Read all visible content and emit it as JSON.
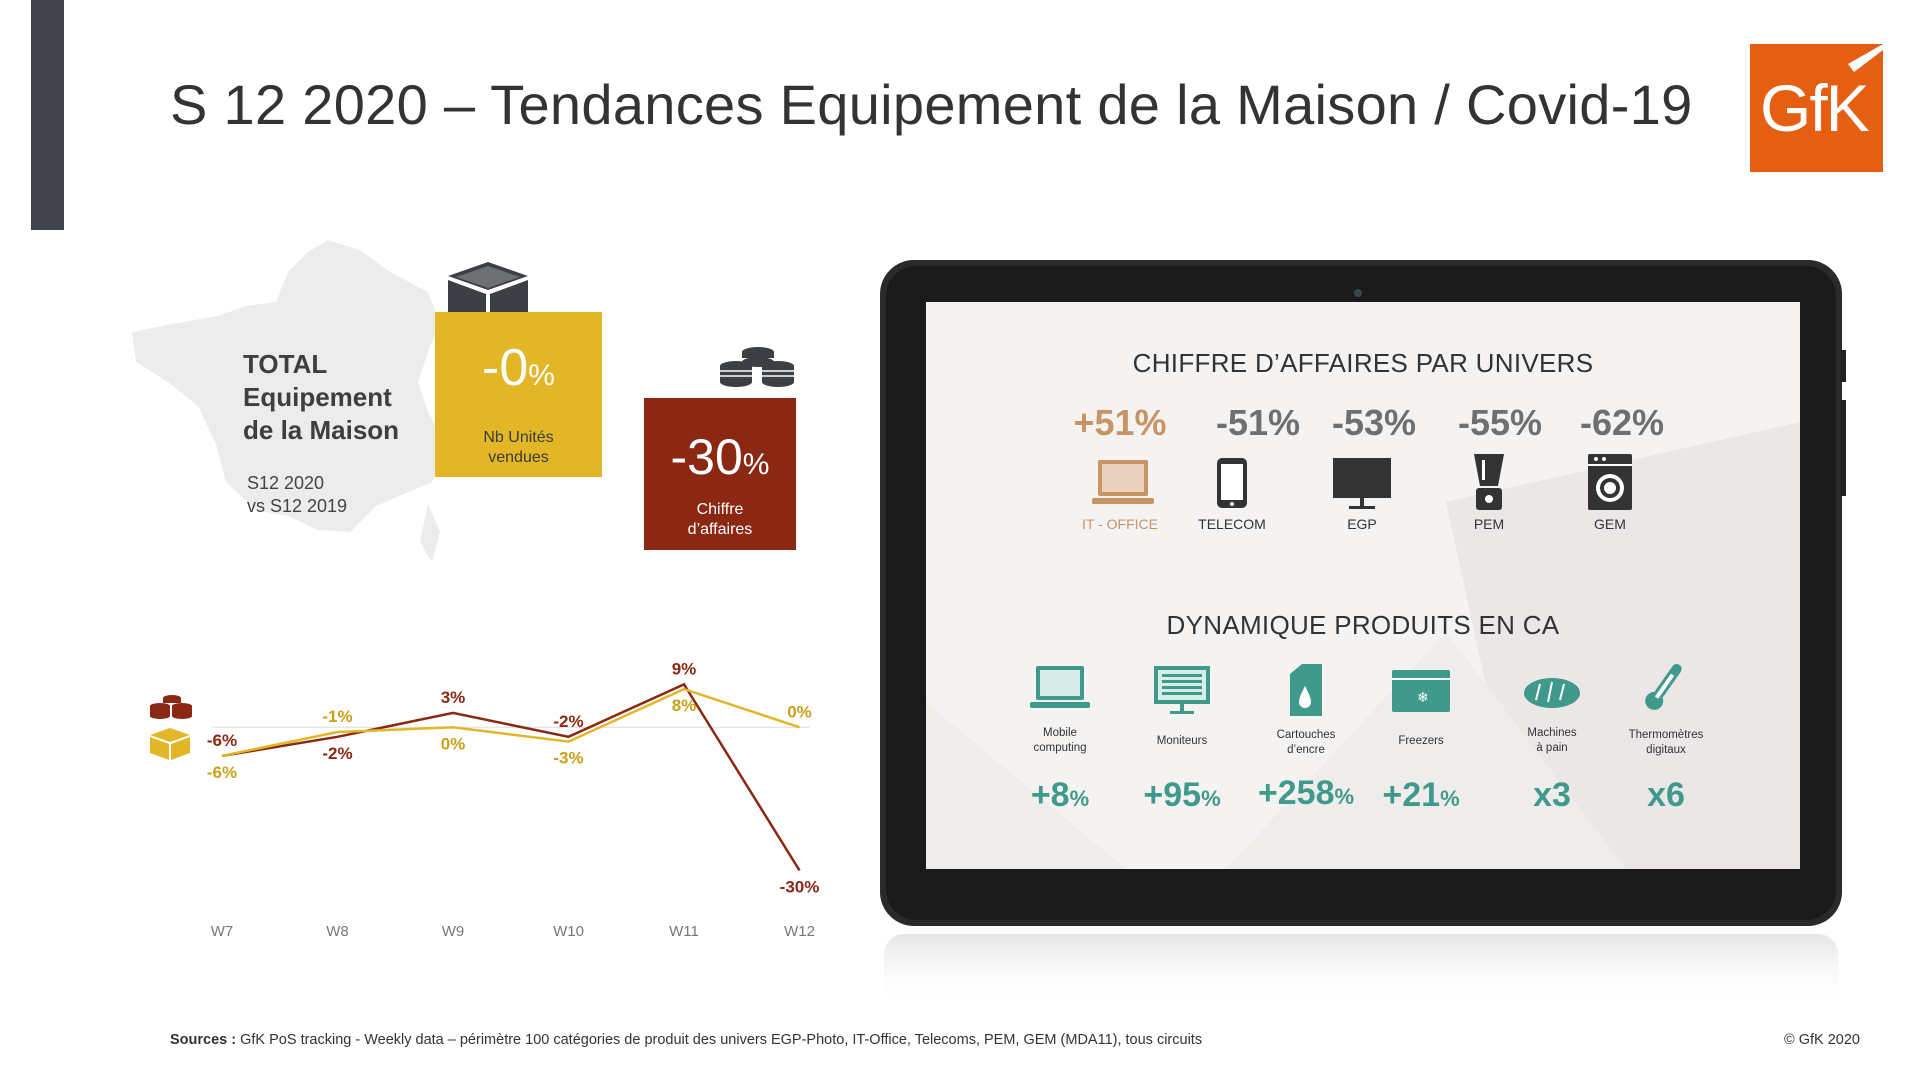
{
  "title": "S 12 2020 – Tendances Equipement de la Maison / Covid-19",
  "logo_text": "GfK",
  "total": {
    "line1": "TOTAL",
    "line2": "Equipement",
    "line3": "de la Maison",
    "period_line1": "S12 2020",
    "period_line2": "vs S12 2019"
  },
  "units_box": {
    "value": "-0",
    "pct": "%",
    "label_line1": "Nb Unités",
    "label_line2": "vendues",
    "color": "#e2b627"
  },
  "ca_box": {
    "value": "-30",
    "pct": "%",
    "label_line1": "Chiffre",
    "label_line2": "d’affaires",
    "color": "#8b2813"
  },
  "tablet": {
    "heading1": "CHIFFRE D’AFFAIRES PAR UNIVERS",
    "universes": [
      {
        "value": "+51%",
        "label": "IT - OFFICE",
        "icon": "laptop-icon"
      },
      {
        "value": "-51%",
        "label": "TELECOM",
        "icon": "smartphone-icon"
      },
      {
        "value": "-53%",
        "label": "EGP",
        "icon": "tv-icon"
      },
      {
        "value": "-55%",
        "label": "PEM",
        "icon": "blender-icon"
      },
      {
        "value": "-62%",
        "label": "GEM",
        "icon": "washing-machine-icon"
      }
    ],
    "heading2": "DYNAMIQUE PRODUITS EN CA",
    "products": [
      {
        "label_line1": "Mobile",
        "label_line2": "computing",
        "value": "+8",
        "pct": "%",
        "icon": "laptop-icon"
      },
      {
        "label_line1": "Moniteurs",
        "label_line2": "",
        "value": "+95",
        "pct": "%",
        "icon": "monitor-icon"
      },
      {
        "label_line1": "Cartouches",
        "label_line2": "d’encre",
        "value": "+258",
        "pct": "%",
        "icon": "ink-cartridge-icon"
      },
      {
        "label_line1": "Freezers",
        "label_line2": "",
        "value": "+21",
        "pct": "%",
        "icon": "freezer-icon"
      },
      {
        "label_line1": "Machines",
        "label_line2": "à pain",
        "value": "x3",
        "pct": "",
        "icon": "bread-icon"
      },
      {
        "label_line1": "Thermomètres",
        "label_line2": "digitaux",
        "value": "x6",
        "pct": "",
        "icon": "thermometer-icon"
      }
    ]
  },
  "chart_data": {
    "type": "line",
    "categories": [
      "W7",
      "W8",
      "W9",
      "W10",
      "W11",
      "W12"
    ],
    "series": [
      {
        "values": [
          -6,
          -2,
          3,
          -2,
          9,
          -30
        ],
        "labels": [
          "-6%",
          "-2%",
          "3%",
          "-2%",
          "9%",
          "-30%"
        ],
        "color": "#8b2813",
        "icon": "coins-icon"
      },
      {
        "values": [
          -6,
          -1,
          0,
          -3,
          8,
          0
        ],
        "labels": [
          "-6%",
          "-1%",
          "0%",
          "-3%",
          "8%",
          "0%"
        ],
        "color": "#e2b627",
        "icon": "box-icon"
      }
    ],
    "ylim": [
      -32,
      12
    ],
    "zero_line": true,
    "legend": "left icons",
    "colors": {
      "ca": "#8b2813",
      "units": "#e2b627"
    }
  },
  "sources": {
    "label": "Sources :",
    "text": " GfK PoS tracking - Weekly data – périmètre 100 catégories de produit des univers EGP-Photo, IT-Office, Telecoms, PEM, GEM (MDA11), tous circuits"
  },
  "copyright": "© GfK 2020",
  "colors": {
    "accent_orange": "#e55f12",
    "teal": "#3f9a8c",
    "sidebar": "#41454b"
  }
}
